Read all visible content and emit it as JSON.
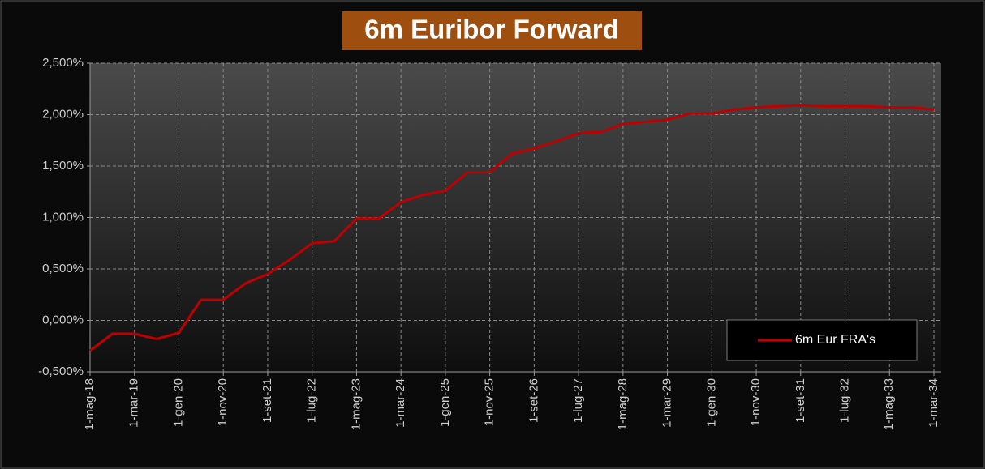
{
  "chart_data": {
    "type": "line",
    "title": "6m Euribor Forward",
    "categories": [
      "1-mag-18",
      null,
      "1-mar-19",
      null,
      "1-gen-20",
      null,
      "1-nov-20",
      null,
      "1-set-21",
      null,
      "1-lug-22",
      null,
      "1-mag-23",
      null,
      "1-mar-24",
      null,
      "1-gen-25",
      null,
      "1-nov-25",
      null,
      "1-set-26",
      null,
      "1-lug-27",
      null,
      "1-mag-28",
      null,
      "1-mar-29",
      null,
      "1-gen-30",
      null,
      "1-nov-30",
      null,
      "1-set-31",
      null,
      "1-lug-32",
      null,
      "1-mag-33",
      null,
      "1-mar-34"
    ],
    "series": [
      {
        "name": "6m Eur FRA's",
        "color": "#c00000",
        "values": [
          -0.295,
          -0.13,
          -0.13,
          -0.18,
          -0.12,
          0.2,
          0.2,
          0.36,
          0.45,
          0.59,
          0.75,
          0.77,
          0.99,
          0.99,
          1.15,
          1.22,
          1.26,
          1.44,
          1.44,
          1.62,
          1.67,
          1.74,
          1.82,
          1.83,
          1.91,
          1.93,
          1.95,
          2.01,
          2.01,
          2.05,
          2.07,
          2.08,
          2.09,
          2.08,
          2.08,
          2.08,
          2.07,
          2.07,
          2.05
        ]
      }
    ],
    "ylim": [
      -0.5,
      2.5
    ],
    "yticks": [
      {
        "value": -0.5,
        "label": "-0,500%"
      },
      {
        "value": 0,
        "label": "0,000%"
      },
      {
        "value": 0.5,
        "label": "0,500%"
      },
      {
        "value": 1,
        "label": "1,000%"
      },
      {
        "value": 1.5,
        "label": "1,500%"
      },
      {
        "value": 2,
        "label": "2,000%"
      },
      {
        "value": 2.5,
        "label": "2,500%"
      }
    ],
    "grid": true,
    "legend": "bottom-right"
  }
}
